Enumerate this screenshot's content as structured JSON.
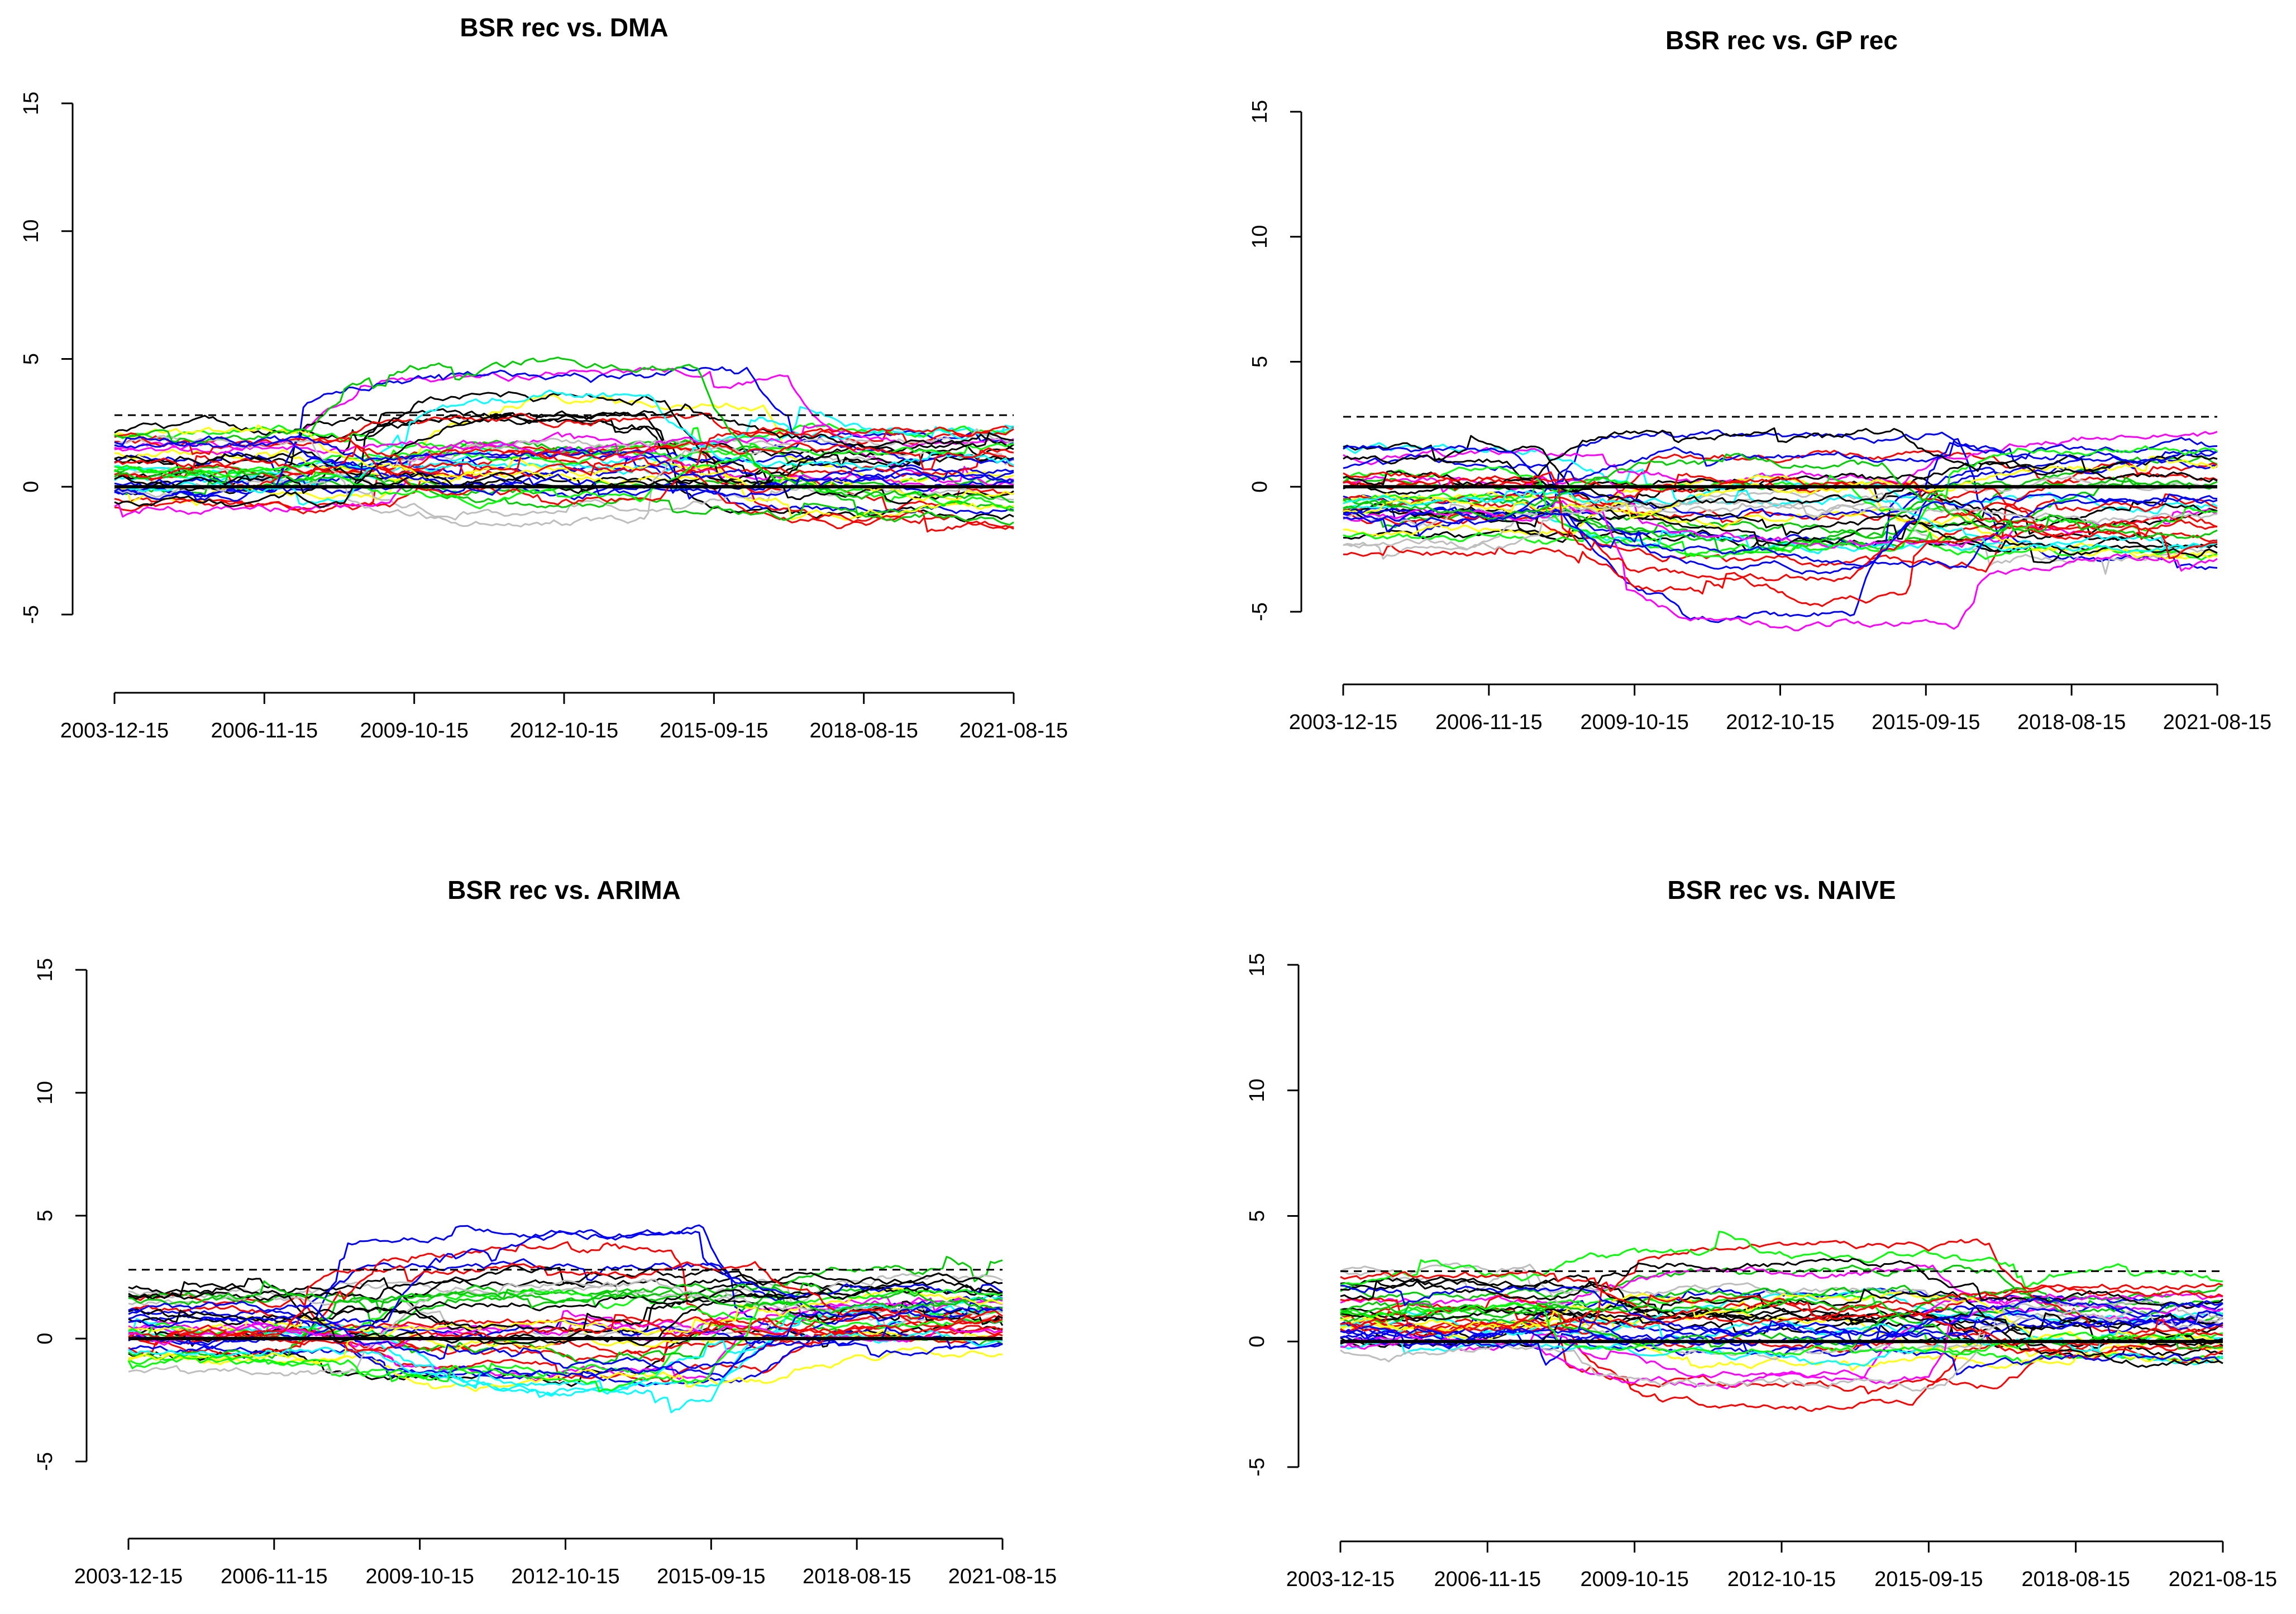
{
  "chart_data": [
    {
      "type": "line",
      "title": "BSR rec vs. DMA",
      "xlabel": "",
      "ylabel": "",
      "x_ticks": [
        "2003-12-15",
        "2006-11-15",
        "2009-10-15",
        "2012-10-15",
        "2015-09-15",
        "2018-08-15",
        "2021-08-15"
      ],
      "y_ticks": [
        "-5",
        "0",
        "5",
        "10",
        "15"
      ],
      "ylim": [
        -5,
        15
      ],
      "reference_lines": {
        "zero": 0,
        "dashed": 2.8
      },
      "n_series": 40,
      "series_profile": {
        "base_min": -0.8,
        "base_max": 2.2,
        "regime_shift": [
          -3.0,
          5.6
        ],
        "final_spread": [
          -2.0,
          3.0
        ]
      },
      "seed": 11
    },
    {
      "type": "line",
      "title": "BSR rec vs. GP rec",
      "xlabel": "",
      "ylabel": "",
      "x_ticks": [
        "2003-12-15",
        "2006-11-15",
        "2009-10-15",
        "2012-10-15",
        "2015-09-15",
        "2018-08-15",
        "2021-08-15"
      ],
      "y_ticks": [
        "-5",
        "0",
        "5",
        "10",
        "15"
      ],
      "ylim": [
        -5,
        15
      ],
      "reference_lines": {
        "zero": 0,
        "dashed": 2.8
      },
      "n_series": 40,
      "series_profile": {
        "base_min": -3.2,
        "base_max": 1.8,
        "regime_shift": [
          -6.3,
          3.0
        ],
        "final_spread": [
          -4.0,
          2.5
        ]
      },
      "seed": 23
    },
    {
      "type": "line",
      "title": "BSR rec vs. ARIMA",
      "xlabel": "",
      "ylabel": "",
      "x_ticks": [
        "2003-12-15",
        "2006-11-15",
        "2009-10-15",
        "2012-10-15",
        "2015-09-15",
        "2018-08-15",
        "2021-08-15"
      ],
      "y_ticks": [
        "-5",
        "0",
        "5",
        "10",
        "15"
      ],
      "ylim": [
        -5,
        15
      ],
      "reference_lines": {
        "zero": 0,
        "dashed": 2.8
      },
      "n_series": 40,
      "series_profile": {
        "base_min": -1.5,
        "base_max": 2.2,
        "regime_shift": [
          -3.3,
          4.9
        ],
        "final_spread": [
          -0.5,
          3.3
        ]
      },
      "seed": 37
    },
    {
      "type": "line",
      "title": "BSR rec vs. NAIVE",
      "xlabel": "",
      "ylabel": "",
      "x_ticks": [
        "2003-12-15",
        "2006-11-15",
        "2009-10-15",
        "2012-10-15",
        "2015-09-15",
        "2018-08-15",
        "2021-08-15"
      ],
      "y_ticks": [
        "-5",
        "0",
        "5",
        "10",
        "15"
      ],
      "ylim": [
        -5,
        15
      ],
      "reference_lines": {
        "zero": 0,
        "dashed": 2.8
      },
      "n_series": 40,
      "series_profile": {
        "base_min": -0.5,
        "base_max": 3.0,
        "regime_shift": [
          -3.0,
          4.6
        ],
        "final_spread": [
          -1.6,
          2.9
        ]
      },
      "seed": 53
    }
  ],
  "palette": [
    "#000000",
    "#ff0000",
    "#00cd00",
    "#0000ff",
    "#00ffff",
    "#ff00ff",
    "#ffff00",
    "#bebebe",
    "#000000",
    "#ff0000",
    "#0000ff",
    "#00ff00"
  ]
}
